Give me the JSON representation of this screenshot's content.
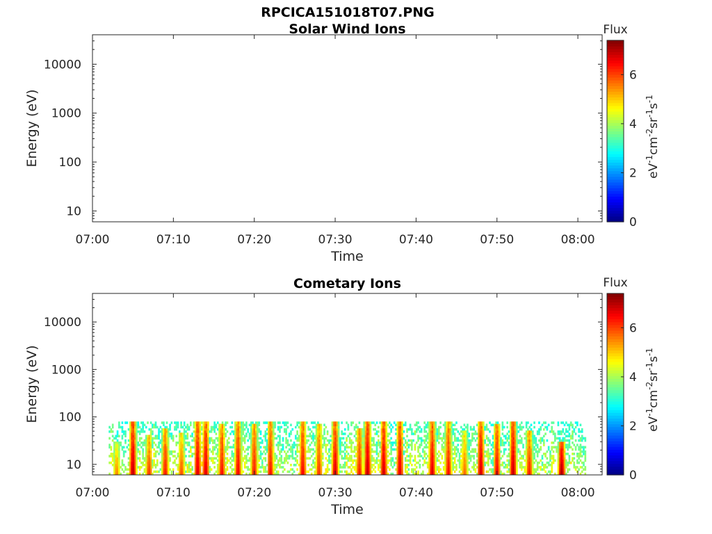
{
  "figure": {
    "title": "RPCICA151018T07.PNG"
  },
  "colorbar": {
    "title": "Flux",
    "label_parts": [
      "eV",
      "-1",
      "cm",
      "-2",
      "sr",
      "-1",
      "s",
      "-1"
    ],
    "ticks": [
      "0",
      "2",
      "4",
      "6"
    ],
    "range": [
      0,
      7.4
    ],
    "colormap": "jet"
  },
  "chart_data": [
    {
      "type": "heatmap",
      "title": "Solar Wind Ions",
      "xlabel": "Time",
      "ylabel": "Energy (eV)",
      "x_ticks": [
        "07:00",
        "07:10",
        "07:20",
        "07:30",
        "07:40",
        "07:50",
        "08:00"
      ],
      "y_ticks": [
        "10",
        "100",
        "1000",
        "10000"
      ],
      "y_scale": "log",
      "ylim": [
        6,
        40000
      ],
      "xlim": [
        "07:00",
        "08:03"
      ],
      "data": "none"
    },
    {
      "type": "heatmap",
      "title": "Cometary Ions",
      "xlabel": "Time",
      "ylabel": "Energy (eV)",
      "x_ticks": [
        "07:00",
        "07:10",
        "07:20",
        "07:30",
        "07:40",
        "07:50",
        "08:00"
      ],
      "y_ticks": [
        "10",
        "100",
        "1000",
        "10000"
      ],
      "y_scale": "log",
      "ylim": [
        6,
        40000
      ],
      "xlim": [
        "07:00",
        "08:03"
      ],
      "data_time_range": [
        "07:02",
        "08:01"
      ],
      "energy_range_eV": [
        6,
        80
      ],
      "bursts": [
        {
          "t": "07:03",
          "flux": 5.6,
          "top": 30
        },
        {
          "t": "07:05",
          "flux": 7.0,
          "top": 80
        },
        {
          "t": "07:07",
          "flux": 6.2,
          "top": 40
        },
        {
          "t": "07:09",
          "flux": 6.4,
          "top": 60
        },
        {
          "t": "07:11",
          "flux": 6.0,
          "top": 45
        },
        {
          "t": "07:13",
          "flux": 6.8,
          "top": 80
        },
        {
          "t": "07:14",
          "flux": 6.8,
          "top": 80
        },
        {
          "t": "07:16",
          "flux": 6.5,
          "top": 70
        },
        {
          "t": "07:18",
          "flux": 6.6,
          "top": 80
        },
        {
          "t": "07:20",
          "flux": 6.4,
          "top": 75
        },
        {
          "t": "07:22",
          "flux": 6.5,
          "top": 80
        },
        {
          "t": "07:26",
          "flux": 6.6,
          "top": 80
        },
        {
          "t": "07:28",
          "flux": 6.2,
          "top": 70
        },
        {
          "t": "07:30",
          "flux": 6.8,
          "top": 80
        },
        {
          "t": "07:33",
          "flux": 6.4,
          "top": 60
        },
        {
          "t": "07:34",
          "flux": 7.0,
          "top": 80
        },
        {
          "t": "07:36",
          "flux": 6.9,
          "top": 80
        },
        {
          "t": "07:38",
          "flux": 6.8,
          "top": 80
        },
        {
          "t": "07:42",
          "flux": 6.8,
          "top": 80
        },
        {
          "t": "07:44",
          "flux": 6.5,
          "top": 80
        },
        {
          "t": "07:46",
          "flux": 5.8,
          "top": 50
        },
        {
          "t": "07:48",
          "flux": 6.9,
          "top": 80
        },
        {
          "t": "07:50",
          "flux": 6.6,
          "top": 70
        },
        {
          "t": "07:52",
          "flux": 7.0,
          "top": 80
        },
        {
          "t": "07:54",
          "flux": 6.4,
          "top": 50
        },
        {
          "t": "07:58",
          "flux": 7.2,
          "top": 30
        }
      ]
    }
  ]
}
